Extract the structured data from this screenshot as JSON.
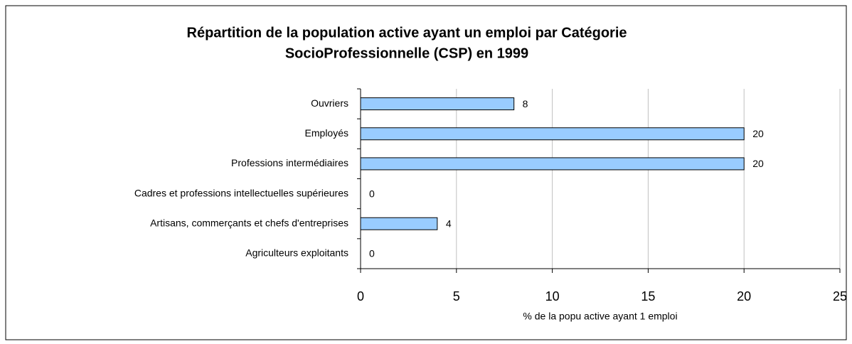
{
  "chart_data": {
    "type": "bar",
    "orientation": "horizontal",
    "title": [
      "Répartition de la population active ayant un emploi par Catégorie",
      "SocioProfessionnelle (CSP) en 1999"
    ],
    "categories": [
      "Ouvriers",
      "Employés",
      "Professions intermédiaires",
      "Cadres et professions intellectuelles supérieures",
      "Artisans, commerçants et chefs d'entreprises",
      "Agriculteurs exploitants"
    ],
    "values": [
      8,
      20,
      20,
      0,
      4,
      0
    ],
    "color": "#99ccff",
    "xlabel": "% de la popu active ayant 1 emploi",
    "xlim": [
      0,
      25
    ],
    "xticks": [
      0,
      5,
      10,
      15,
      20,
      25
    ],
    "grid": true
  }
}
